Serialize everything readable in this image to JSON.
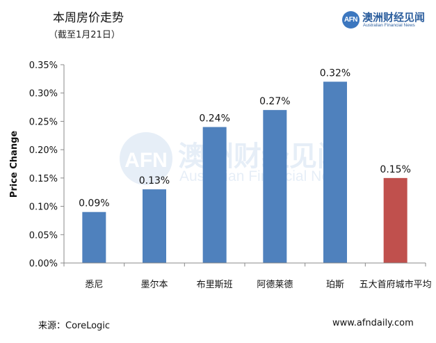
{
  "header": {
    "title": "本周房价走势",
    "subtitle": "（截至1月21日）"
  },
  "logo": {
    "mark": "AFN",
    "name_cn": "澳洲财经见闻",
    "name_en": "Australian Financial News"
  },
  "footer": {
    "source": "来源：CoreLogic",
    "website": "www.afndaily.com"
  },
  "colors": {
    "bar": "#4f81bd",
    "highlight_bar": "#c0504d",
    "axis": "#888888"
  },
  "chart_data": {
    "type": "bar",
    "categories": [
      "悉尼",
      "墨尔本",
      "布里斯班",
      "阿德莱德",
      "珀斯",
      "五大首府城市平均"
    ],
    "values": [
      0.09,
      0.13,
      0.24,
      0.27,
      0.32,
      0.15
    ],
    "value_labels": [
      "0.09%",
      "0.13%",
      "0.24%",
      "0.27%",
      "0.32%",
      "0.15%"
    ],
    "highlight_index": 5,
    "ylabel": "Price Change",
    "ylim": [
      0,
      0.35
    ],
    "yticks": [
      {
        "value": 0,
        "label": "0.00%"
      },
      {
        "value": 0.05,
        "label": "0.05%"
      },
      {
        "value": 0.1,
        "label": "0.10%"
      },
      {
        "value": 0.15,
        "label": "0.15%"
      },
      {
        "value": 0.2,
        "label": "0.20%"
      },
      {
        "value": 0.25,
        "label": "0.25%"
      },
      {
        "value": 0.3,
        "label": "0.30%"
      },
      {
        "value": 0.35,
        "label": "0.35%"
      }
    ],
    "grid": false,
    "legend": false
  }
}
